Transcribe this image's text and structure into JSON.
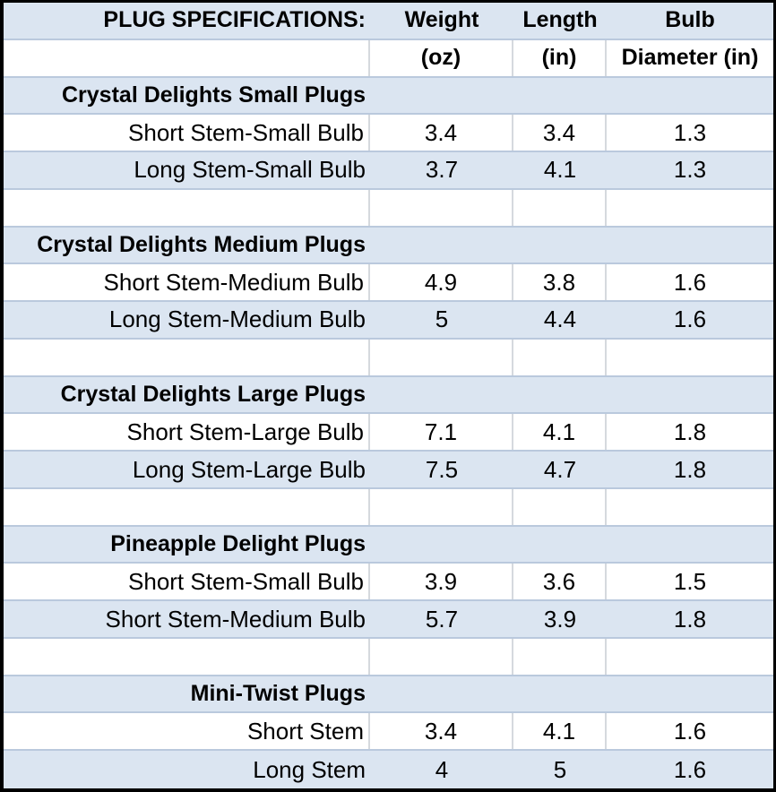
{
  "table": {
    "title": "PLUG SPECIFICATIONS:",
    "columns": {
      "weight_label": "Weight",
      "weight_unit": "(oz)",
      "length_label": "Length",
      "length_unit": "(in)",
      "diameter_label": "Bulb",
      "diameter_unit": "Diameter (in)"
    },
    "colors": {
      "band_blue": "#dbe5f1",
      "row_border": "#bac9dd",
      "cell_border": "#d5d9de",
      "outer_border": "#000000",
      "text": "#000000"
    },
    "sections": [
      {
        "name": "Crystal Delights Small Plugs",
        "rows": [
          {
            "label": "Short Stem-Small Bulb",
            "weight": "3.4",
            "length": "3.4",
            "diameter": "1.3"
          },
          {
            "label": "Long Stem-Small Bulb",
            "weight": "3.7",
            "length": "4.1",
            "diameter": "1.3"
          }
        ]
      },
      {
        "name": "Crystal Delights Medium Plugs",
        "rows": [
          {
            "label": "Short Stem-Medium Bulb",
            "weight": "4.9",
            "length": "3.8",
            "diameter": "1.6"
          },
          {
            "label": "Long Stem-Medium Bulb",
            "weight": "5",
            "length": "4.4",
            "diameter": "1.6"
          }
        ]
      },
      {
        "name": "Crystal Delights Large Plugs",
        "rows": [
          {
            "label": "Short Stem-Large Bulb",
            "weight": "7.1",
            "length": "4.1",
            "diameter": "1.8"
          },
          {
            "label": "Long Stem-Large Bulb",
            "weight": "7.5",
            "length": "4.7",
            "diameter": "1.8"
          }
        ]
      },
      {
        "name": "Pineapple Delight Plugs",
        "rows": [
          {
            "label": "Short Stem-Small Bulb",
            "weight": "3.9",
            "length": "3.6",
            "diameter": "1.5"
          },
          {
            "label": "Short Stem-Medium Bulb",
            "weight": "5.7",
            "length": "3.9",
            "diameter": "1.8"
          }
        ]
      },
      {
        "name": "Mini-Twist Plugs",
        "rows": [
          {
            "label": "Short Stem",
            "weight": "3.4",
            "length": "4.1",
            "diameter": "1.6"
          },
          {
            "label": "Long Stem",
            "weight": "4",
            "length": "5",
            "diameter": "1.6"
          }
        ]
      }
    ]
  }
}
